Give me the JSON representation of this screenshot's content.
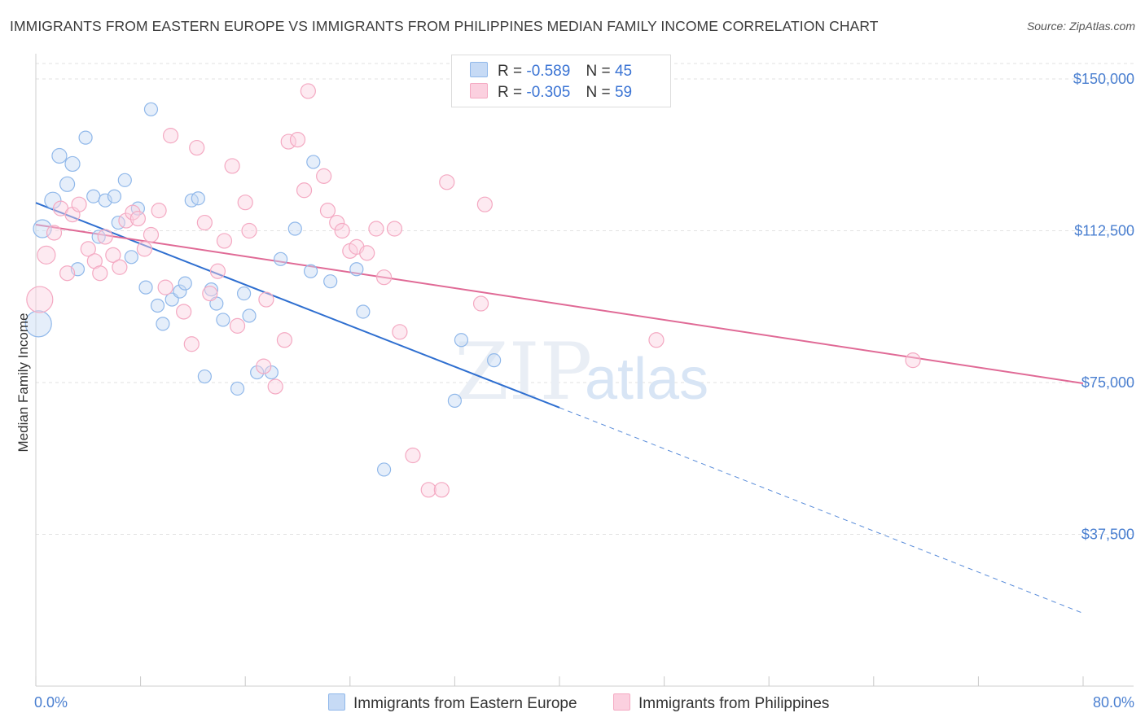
{
  "title": "IMMIGRANTS FROM EASTERN EUROPE VS IMMIGRANTS FROM PHILIPPINES MEDIAN FAMILY INCOME CORRELATION CHART",
  "source": "Source: ZipAtlas.com",
  "watermark": {
    "zip": "ZIP",
    "atlas": "atlas"
  },
  "legend": {
    "r_label": "R =",
    "n_label": "N =",
    "series": [
      {
        "r": "-0.589",
        "n": "45"
      },
      {
        "r": "-0.305",
        "n": "59"
      }
    ]
  },
  "bottom_legend": [
    "Immigrants from Eastern Europe",
    "Immigrants from Philippines"
  ],
  "chart_data": {
    "type": "scatter",
    "title": "IMMIGRANTS FROM EASTERN EUROPE VS IMMIGRANTS FROM PHILIPPINES MEDIAN FAMILY INCOME CORRELATION CHART",
    "xlabel": "",
    "ylabel": "Median Family Income",
    "xlim": [
      0,
      80
    ],
    "ylim": [
      0,
      150000
    ],
    "x_tick_labels": [
      "0.0%",
      "80.0%"
    ],
    "y_ticks": [
      37500,
      75000,
      112500,
      150000
    ],
    "y_tick_labels": [
      "$37,500",
      "$75,000",
      "$112,500",
      "$150,000"
    ],
    "grid": true,
    "series": [
      {
        "name": "Immigrants from Eastern Europe",
        "color": "#90b8ea",
        "line_color": "#2f6fd0",
        "trend": {
          "x0": 0,
          "y0": 119400,
          "x1": 40,
          "y1": 68800,
          "dashed_to_x": 80,
          "dashed_to_y": 18000
        },
        "points": [
          [
            0.2,
            89500,
            16
          ],
          [
            0.5,
            113000,
            11
          ],
          [
            1.3,
            120000,
            10
          ],
          [
            1.8,
            131000,
            9
          ],
          [
            2.4,
            124000,
            9
          ],
          [
            2.8,
            129000,
            9
          ],
          [
            3.2,
            103000,
            8
          ],
          [
            3.8,
            135500,
            8
          ],
          [
            4.4,
            121000,
            8
          ],
          [
            4.8,
            111000,
            8
          ],
          [
            5.3,
            120000,
            8
          ],
          [
            6.0,
            121000,
            8
          ],
          [
            6.3,
            114500,
            8
          ],
          [
            6.8,
            125000,
            8
          ],
          [
            7.3,
            106000,
            8
          ],
          [
            7.8,
            118000,
            8
          ],
          [
            8.4,
            98500,
            8
          ],
          [
            8.8,
            142500,
            8
          ],
          [
            9.3,
            94000,
            8
          ],
          [
            9.7,
            89500,
            8
          ],
          [
            10.4,
            95500,
            8
          ],
          [
            11.0,
            97500,
            8
          ],
          [
            11.4,
            99500,
            8
          ],
          [
            11.9,
            120000,
            8
          ],
          [
            12.4,
            120500,
            8
          ],
          [
            12.9,
            76500,
            8
          ],
          [
            13.4,
            98000,
            8
          ],
          [
            13.8,
            94500,
            8
          ],
          [
            14.3,
            90500,
            8
          ],
          [
            15.4,
            73500,
            8
          ],
          [
            15.9,
            97000,
            8
          ],
          [
            16.3,
            91500,
            8
          ],
          [
            16.9,
            77500,
            8
          ],
          [
            18.0,
            77500,
            8
          ],
          [
            18.7,
            105500,
            8
          ],
          [
            19.8,
            113000,
            8
          ],
          [
            21.0,
            102500,
            8
          ],
          [
            21.2,
            129500,
            8
          ],
          [
            22.5,
            100000,
            8
          ],
          [
            24.5,
            103000,
            8
          ],
          [
            25.0,
            92500,
            8
          ],
          [
            26.6,
            53500,
            8
          ],
          [
            32.0,
            70500,
            8
          ],
          [
            32.5,
            85500,
            8
          ],
          [
            35.0,
            80500,
            8
          ]
        ]
      },
      {
        "name": "Immigrants from Philippines",
        "color": "#f4a9c2",
        "line_color": "#e06a96",
        "trend": {
          "x0": 0,
          "y0": 114000,
          "x1": 80,
          "y1": 74800
        },
        "points": [
          [
            0.3,
            95500,
            16
          ],
          [
            0.8,
            106500,
            11
          ],
          [
            1.4,
            112000,
            9
          ],
          [
            1.9,
            118000,
            9
          ],
          [
            2.4,
            102000,
            9
          ],
          [
            2.8,
            116500,
            9
          ],
          [
            3.3,
            119000,
            9
          ],
          [
            4.0,
            108000,
            9
          ],
          [
            4.5,
            105000,
            9
          ],
          [
            4.9,
            102000,
            9
          ],
          [
            5.3,
            111000,
            9
          ],
          [
            5.9,
            106500,
            9
          ],
          [
            6.4,
            103500,
            9
          ],
          [
            6.9,
            115000,
            9
          ],
          [
            7.4,
            117000,
            9
          ],
          [
            7.8,
            115500,
            9
          ],
          [
            8.3,
            108000,
            9
          ],
          [
            8.8,
            111500,
            9
          ],
          [
            9.4,
            117500,
            9
          ],
          [
            9.9,
            98500,
            9
          ],
          [
            10.3,
            136000,
            9
          ],
          [
            11.3,
            92500,
            9
          ],
          [
            11.9,
            84500,
            9
          ],
          [
            12.3,
            133000,
            9
          ],
          [
            12.9,
            114500,
            9
          ],
          [
            13.3,
            97000,
            9
          ],
          [
            13.9,
            102500,
            9
          ],
          [
            14.4,
            110000,
            9
          ],
          [
            15.0,
            128500,
            9
          ],
          [
            15.4,
            89000,
            9
          ],
          [
            16.0,
            119500,
            9
          ],
          [
            16.3,
            112500,
            9
          ],
          [
            17.4,
            79000,
            9
          ],
          [
            17.6,
            95500,
            9
          ],
          [
            18.3,
            74000,
            9
          ],
          [
            19.0,
            85500,
            9
          ],
          [
            19.3,
            134500,
            9
          ],
          [
            20.0,
            135000,
            9
          ],
          [
            20.5,
            122500,
            9
          ],
          [
            20.8,
            147000,
            9
          ],
          [
            22.0,
            126000,
            9
          ],
          [
            22.3,
            117500,
            9
          ],
          [
            23.0,
            114500,
            9
          ],
          [
            23.4,
            112500,
            9
          ],
          [
            24.0,
            107500,
            9
          ],
          [
            24.5,
            108500,
            9
          ],
          [
            25.3,
            107000,
            9
          ],
          [
            26.0,
            113000,
            9
          ],
          [
            26.6,
            101000,
            9
          ],
          [
            27.4,
            113000,
            9
          ],
          [
            27.8,
            87500,
            9
          ],
          [
            28.8,
            57000,
            9
          ],
          [
            30.0,
            48500,
            9
          ],
          [
            31.0,
            48500,
            9
          ],
          [
            31.4,
            124500,
            9
          ],
          [
            34.0,
            94500,
            9
          ],
          [
            34.3,
            119000,
            9
          ],
          [
            47.4,
            85500,
            9
          ],
          [
            67.0,
            80500,
            9
          ]
        ]
      }
    ]
  },
  "colors": {
    "blue": "#90b8ea",
    "blue_line": "#2f6fd0",
    "pink": "#f4a9c2",
    "pink_line": "#e06a96",
    "axis_text": "#4a7fd0"
  }
}
